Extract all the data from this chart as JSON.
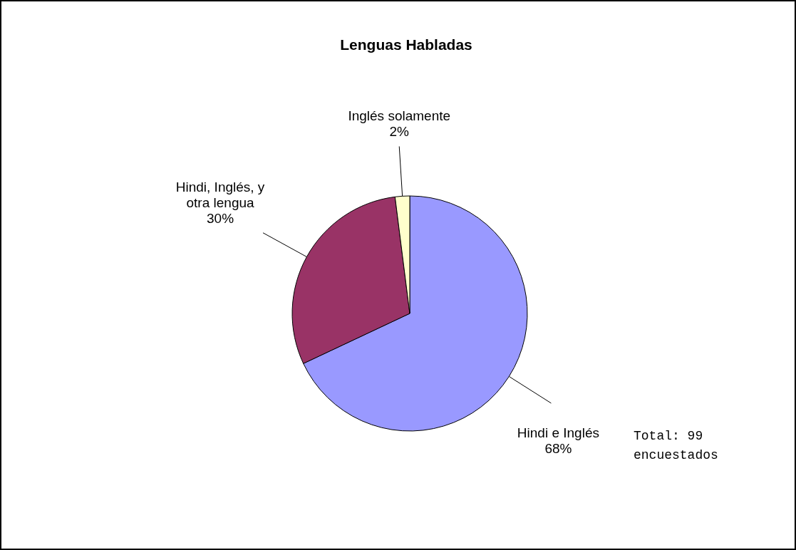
{
  "chart_data": {
    "type": "pie",
    "title": "Lenguas Habladas",
    "categories": [
      "Hindi e Inglés",
      "Hindi, Inglés, y otra lengua",
      "Inglés solamente"
    ],
    "values": [
      68,
      30,
      2
    ],
    "value_labels": [
      "68%",
      "30%",
      "2%"
    ],
    "colors": [
      "#9999ff",
      "#993366",
      "#ffffcc"
    ],
    "annotations": [
      "Total: 99 encuestados"
    ]
  }
}
